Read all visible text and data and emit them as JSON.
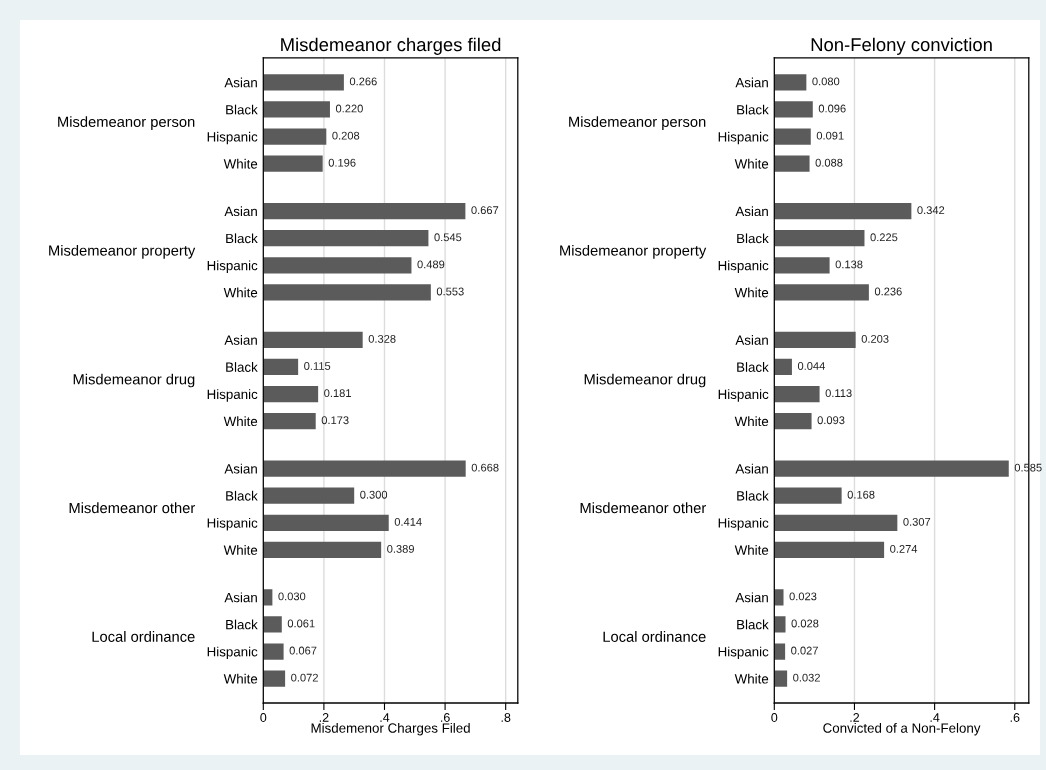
{
  "chart_data": [
    {
      "type": "bar",
      "orientation": "horizontal",
      "title": "Misdemeanor charges filed",
      "xlabel": "Misdemenor Charges Filed",
      "categories": [
        "Asian",
        "Black",
        "Hispanic",
        "White",
        "Asian",
        "Black",
        "Hispanic",
        "White",
        "Asian",
        "Black",
        "Hispanic",
        "White",
        "Asian",
        "Black",
        "Hispanic",
        "White",
        "Asian",
        "Black",
        "Hispanic",
        "White"
      ],
      "values": [
        0.266,
        0.22,
        0.208,
        0.196,
        0.667,
        0.545,
        0.489,
        0.553,
        0.328,
        0.115,
        0.181,
        0.173,
        0.668,
        0.3,
        0.414,
        0.389,
        0.03,
        0.061,
        0.067,
        0.072
      ],
      "value_labels": [
        "0.266",
        "0.220",
        "0.208",
        "0.196",
        "0.667",
        "0.545",
        "0.489",
        "0.553",
        "0.328",
        "0.115",
        "0.181",
        "0.173",
        "0.668",
        "0.300",
        "0.414",
        "0.389",
        "0.030",
        "0.061",
        "0.067",
        "0.072"
      ],
      "color": "#5b5b5b",
      "xlim": [
        0,
        0.84
      ],
      "xticks": [
        0,
        {
          "value": 0.2,
          "label": ".2"
        },
        {
          "value": 0.4,
          "label": ".4"
        },
        {
          "value": 0.6,
          "label": ".6"
        },
        {
          "value": 0.8,
          "label": ".8"
        }
      ],
      "grid": "x",
      "annotations": [
        "Misdemeanor person",
        "Misdemeanor property",
        "Misdemeanor drug",
        "Misdemeanor other",
        "Local ordinance"
      ]
    },
    {
      "type": "bar",
      "orientation": "horizontal",
      "title": "Non-Felony conviction",
      "xlabel": "Convicted of a Non-Felony",
      "categories": [
        "Asian",
        "Black",
        "Hispanic",
        "White",
        "Asian",
        "Black",
        "Hispanic",
        "White",
        "Asian",
        "Black",
        "Hispanic",
        "White",
        "Asian",
        "Black",
        "Hispanic",
        "White",
        "Asian",
        "Black",
        "Hispanic",
        "White"
      ],
      "values": [
        0.08,
        0.096,
        0.091,
        0.088,
        0.342,
        0.225,
        0.138,
        0.236,
        0.203,
        0.044,
        0.113,
        0.093,
        0.585,
        0.168,
        0.307,
        0.274,
        0.023,
        0.028,
        0.027,
        0.032
      ],
      "value_labels": [
        "0.080",
        "0.096",
        "0.091",
        "0.088",
        "0.342",
        "0.225",
        "0.138",
        "0.236",
        "0.203",
        "0.044",
        "0.113",
        "0.093",
        "0.585",
        "0.168",
        "0.307",
        "0.274",
        "0.023",
        "0.028",
        "0.027",
        "0.032"
      ],
      "color": "#5b5b5b",
      "xlim": [
        0,
        0.635
      ],
      "xticks": [
        0,
        {
          "value": 0.2,
          "label": ".2"
        },
        {
          "value": 0.4,
          "label": ".4"
        },
        {
          "value": 0.6,
          "label": ".6"
        }
      ],
      "grid": "x",
      "annotations": [
        "Misdemeanor person",
        "Misdemeanor property",
        "Misdemeanor drug",
        "Misdemeanor other",
        "Local ordinance"
      ]
    }
  ]
}
